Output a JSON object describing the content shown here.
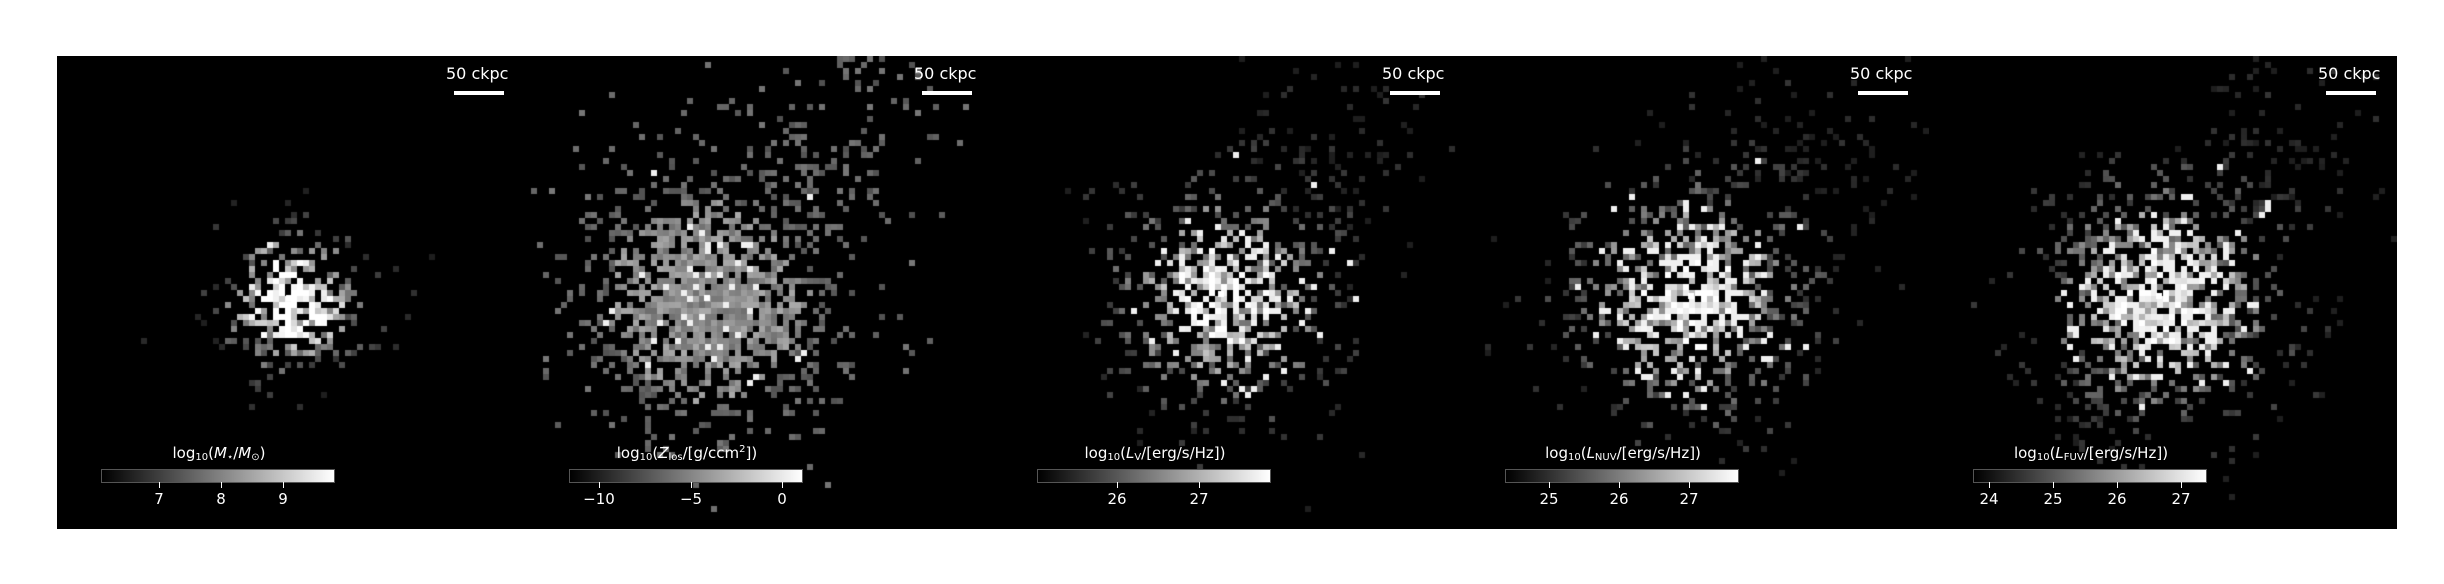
{
  "figure": {
    "panels": [
      {
        "id": "stellar-mass",
        "scalebar": "50 ckpc",
        "colorbar": {
          "label_parts": [
            "log",
            "10",
            "(",
            "M",
            "⋆",
            "/",
            "M",
            "⊙",
            ")"
          ],
          "ticks": [
            "7",
            "8",
            "9"
          ],
          "min": 6.1,
          "max": 9.85
        }
      },
      {
        "id": "metal-column",
        "scalebar": "50 ckpc",
        "colorbar": {
          "label_parts": [
            "log",
            "10",
            "(",
            "Z",
            "los",
            "/[g/ccm",
            "2",
            "])"
          ],
          "ticks": [
            "−10",
            "−5",
            "0"
          ],
          "min": -11.7,
          "max": 1.0
        }
      },
      {
        "id": "v-band",
        "scalebar": "50 ckpc",
        "colorbar": {
          "label_parts": [
            "log",
            "10",
            "(",
            "L",
            "V",
            "/[erg/s/Hz])"
          ],
          "ticks": [
            "26",
            "27"
          ],
          "min": 25.0,
          "max": 27.85
        }
      },
      {
        "id": "nuv",
        "scalebar": "50 ckpc",
        "colorbar": {
          "label_parts": [
            "log",
            "10",
            "(",
            "L",
            "NUV",
            "/[erg/s/Hz])"
          ],
          "ticks": [
            "25",
            "26",
            "27"
          ],
          "min": 24.2,
          "max": 27.45
        }
      },
      {
        "id": "fuv",
        "scalebar": "50 ckpc",
        "colorbar": {
          "label_parts": [
            "log",
            "10",
            "(",
            "L",
            "FUV",
            "/[erg/s/Hz])"
          ],
          "ticks": [
            "24",
            "25",
            "26",
            "27"
          ],
          "min": 23.75,
          "max": 27.4
        }
      }
    ]
  }
}
